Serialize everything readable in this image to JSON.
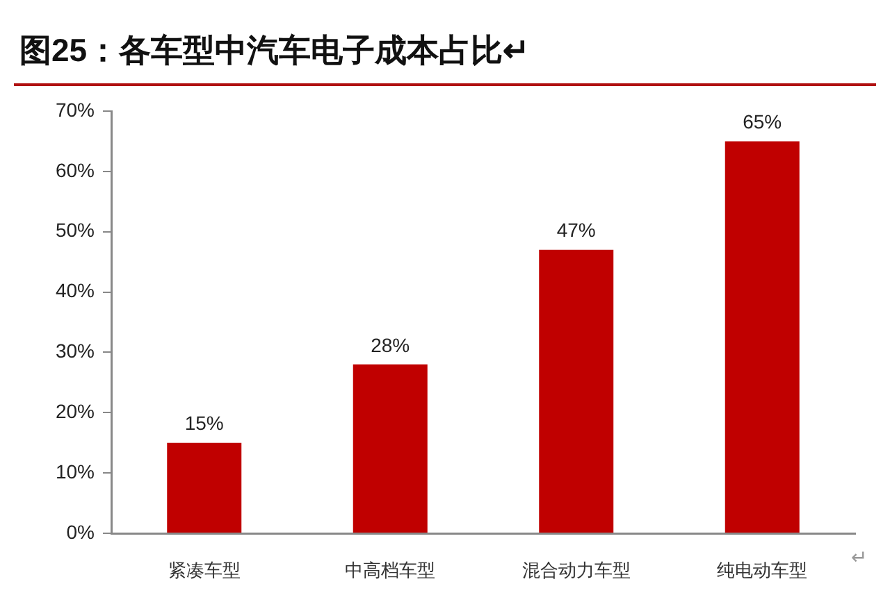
{
  "chart_data": {
    "type": "bar",
    "title": "图25：各车型中汽车电子成本占比↵",
    "categories": [
      "紧凑车型",
      "中高档车型",
      "混合动力车型",
      "纯电动车型"
    ],
    "values": [
      15,
      28,
      47,
      65
    ],
    "color": "#c00000",
    "value_labels": [
      "15%",
      "28%",
      "47%",
      "65%"
    ],
    "ylim": [
      0,
      70
    ],
    "yticks": [
      {
        "value": 0,
        "label": "0%"
      },
      {
        "value": 10,
        "label": "10%"
      },
      {
        "value": 20,
        "label": "20%"
      },
      {
        "value": 30,
        "label": "30%"
      },
      {
        "value": 40,
        "label": "40%"
      },
      {
        "value": 50,
        "label": "50%"
      },
      {
        "value": 60,
        "label": "60%"
      },
      {
        "value": 70,
        "label": "70%"
      }
    ],
    "annotations": [
      "↵"
    ]
  }
}
